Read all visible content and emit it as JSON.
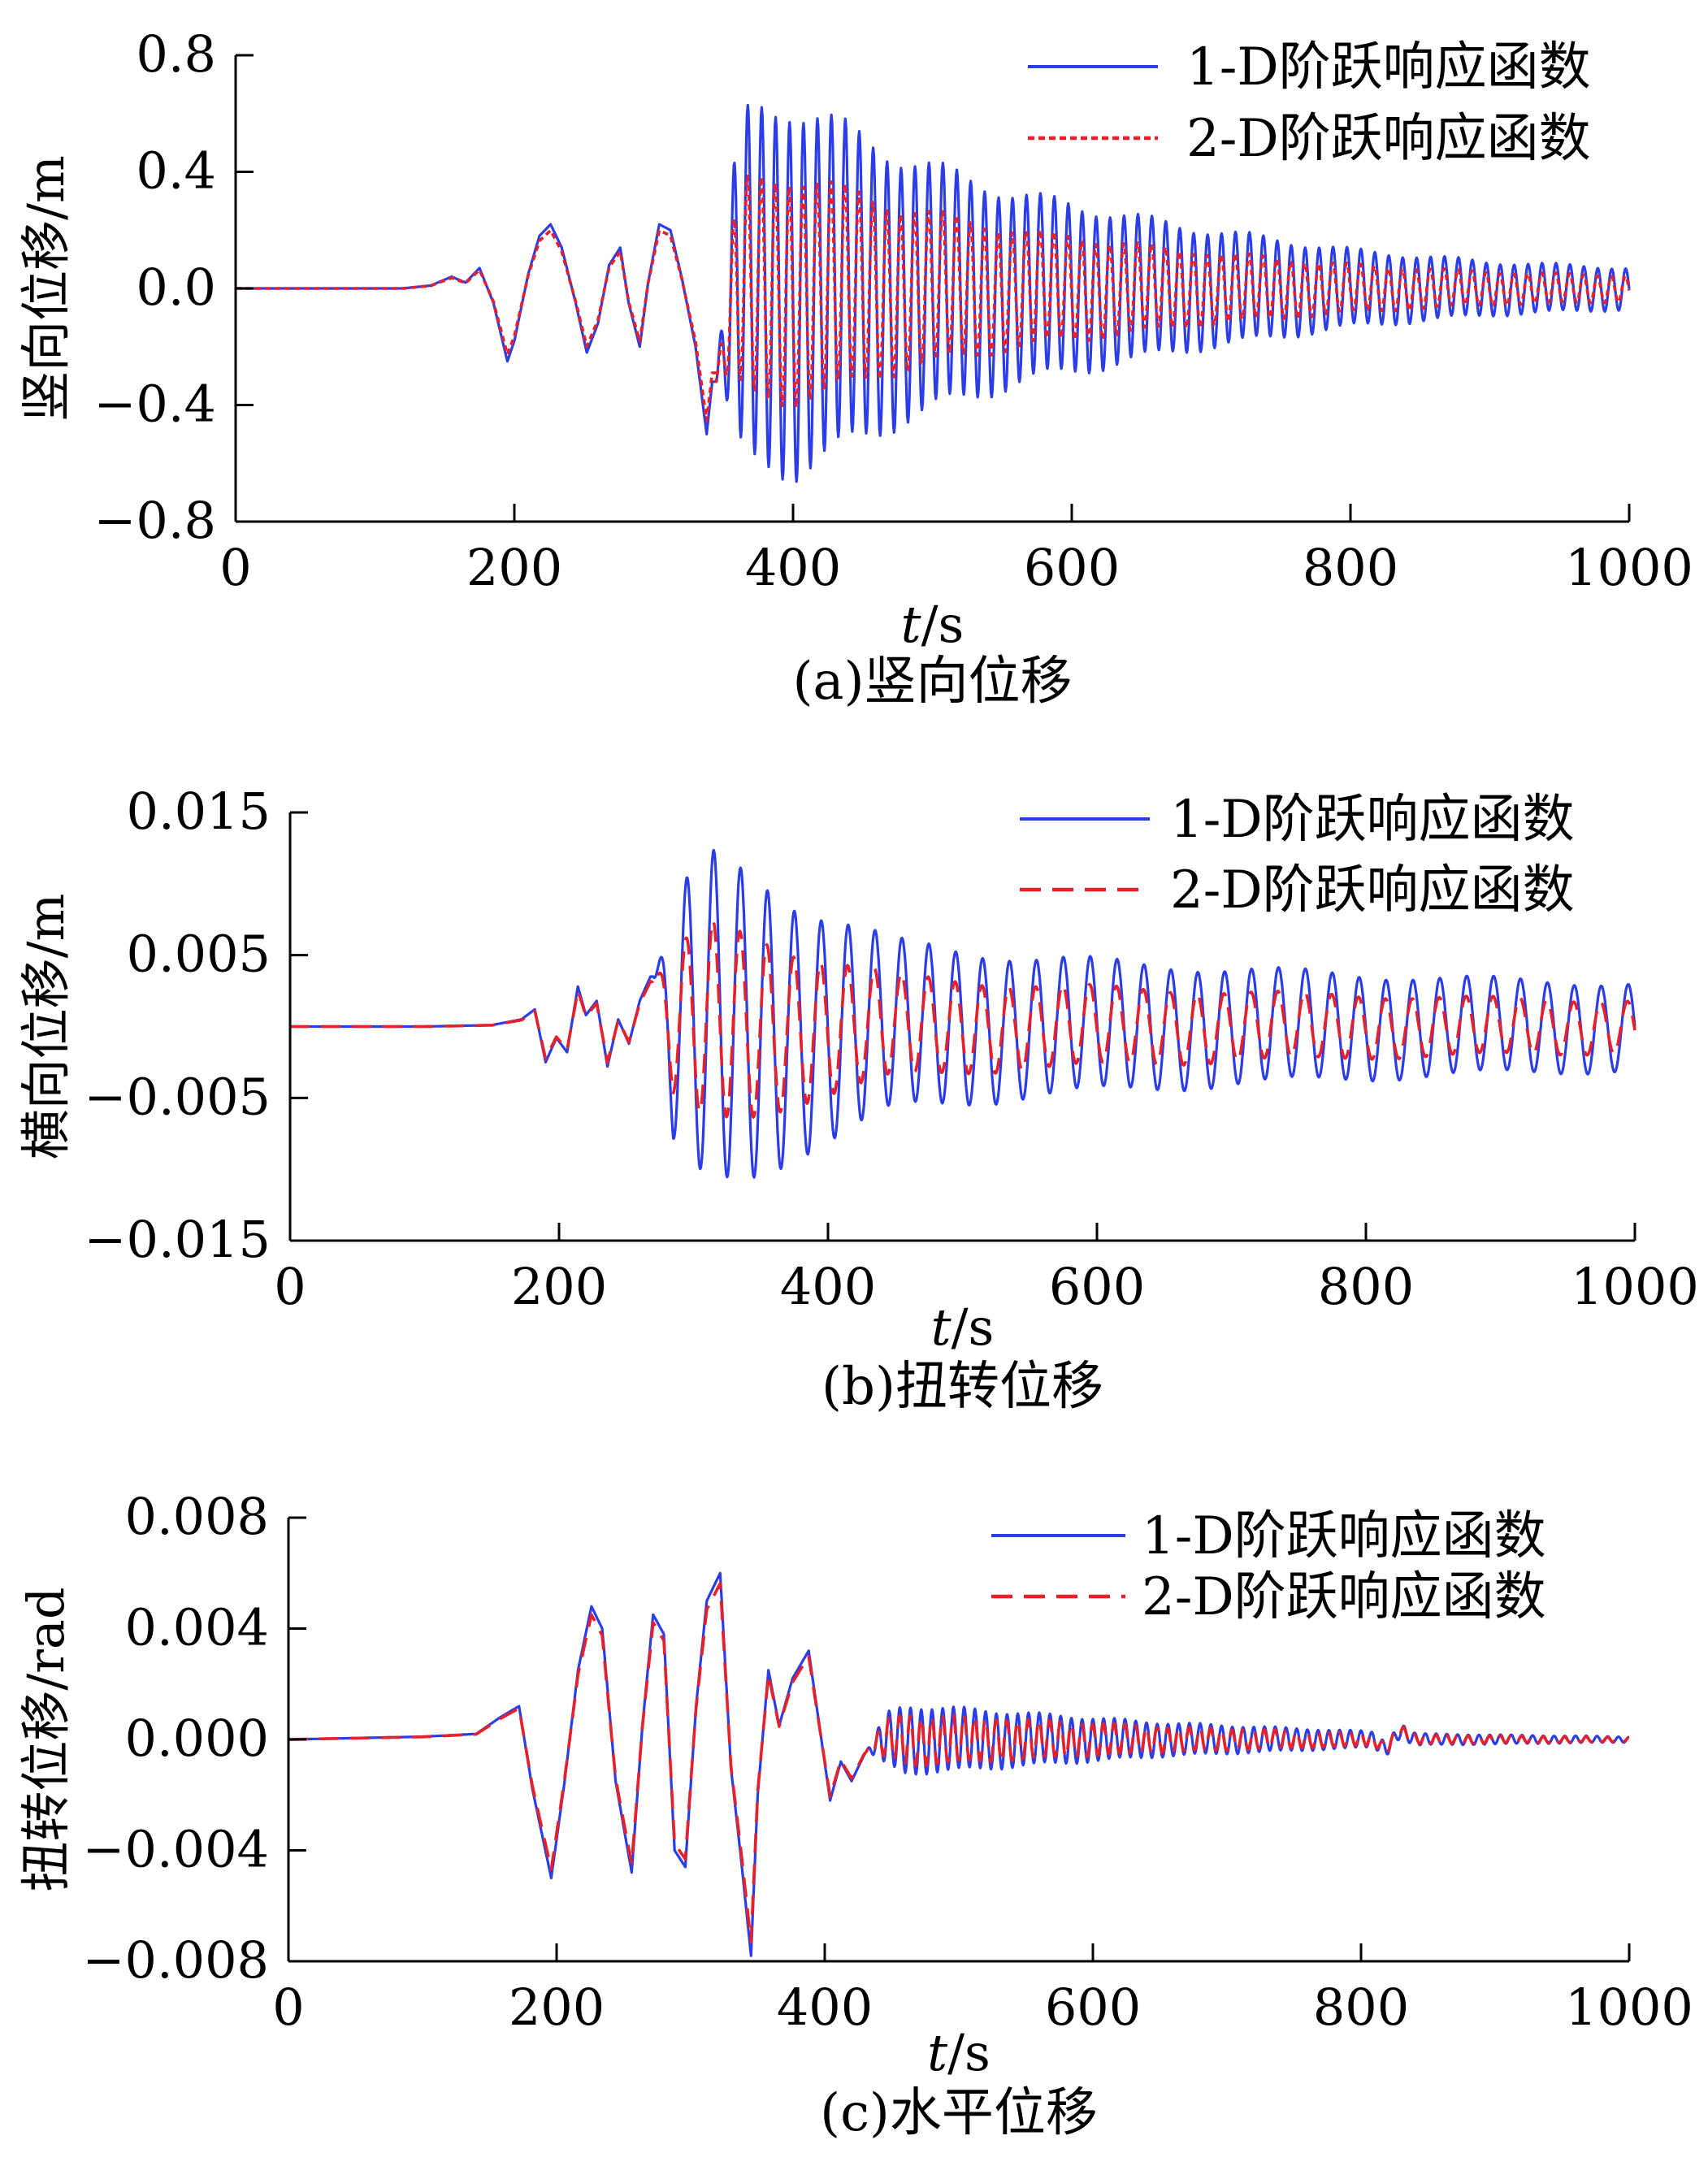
{
  "colors": {
    "series1": "#2a3de8",
    "series2": "#e8202a",
    "axis": "#000000"
  },
  "chart_data": [
    {
      "type": "line",
      "ylabel": "竖向位移/m",
      "xlabel_italic": "t",
      "xlabel_unit": "/s",
      "caption": "(a)竖向位移",
      "xlim": [
        0,
        1000
      ],
      "ylim": [
        -0.8,
        0.8
      ],
      "xticks": [
        0,
        200,
        400,
        600,
        800,
        1000
      ],
      "xtick_labels": [
        "0",
        "200",
        "400",
        "600",
        "800",
        "1000"
      ],
      "yticks": [
        -0.8,
        -0.4,
        0.0,
        0.4,
        0.8
      ],
      "ytick_labels": [
        "−0.8",
        "−0.4",
        "0.0",
        "0.4",
        "0.8"
      ],
      "legend_position": "top-right",
      "series": [
        {
          "name": "1-D阶跃响应函数",
          "style": "solid",
          "color": "#2a3de8"
        },
        {
          "name": "2-D阶跃响应函数",
          "style": "dotted",
          "color": "#e8202a"
        }
      ],
      "signal": {
        "preamble": [
          [
            0,
            0.0
          ],
          [
            120,
            0.0
          ],
          [
            140,
            0.01
          ],
          [
            155,
            0.04
          ],
          [
            165,
            0.02
          ],
          [
            175,
            0.07
          ],
          [
            185,
            -0.05
          ],
          [
            195,
            -0.25
          ],
          [
            200,
            -0.18
          ],
          [
            210,
            0.05
          ],
          [
            218,
            0.18
          ],
          [
            226,
            0.22
          ],
          [
            234,
            0.14
          ],
          [
            244,
            -0.05
          ],
          [
            252,
            -0.22
          ],
          [
            260,
            -0.12
          ],
          [
            268,
            0.08
          ],
          [
            276,
            0.14
          ],
          [
            282,
            -0.05
          ],
          [
            290,
            -0.2
          ],
          [
            296,
            0.02
          ],
          [
            304,
            0.22
          ],
          [
            312,
            0.2
          ],
          [
            320,
            0.04
          ],
          [
            330,
            -0.2
          ],
          [
            338,
            -0.5
          ],
          [
            342,
            -0.32
          ]
        ],
        "osc_start": 345,
        "osc_end": 1000,
        "osc_period": 10,
        "envelope": [
          [
            345,
            0.45
          ],
          [
            370,
            0.6
          ],
          [
            400,
            0.62
          ],
          [
            420,
            0.58
          ],
          [
            480,
            0.44
          ],
          [
            560,
            0.32
          ],
          [
            680,
            0.21
          ],
          [
            800,
            0.13
          ],
          [
            900,
            0.09
          ],
          [
            1000,
            0.07
          ]
        ],
        "series2_scale": 0.62
      }
    },
    {
      "type": "line",
      "ylabel": "横向位移/m",
      "xlabel_italic": "t",
      "xlabel_unit": "/s",
      "caption": "(b)扭转位移",
      "xlim": [
        0,
        1000
      ],
      "ylim": [
        -0.015,
        0.015
      ],
      "xticks": [
        0,
        200,
        400,
        600,
        800,
        1000
      ],
      "xtick_labels": [
        "0",
        "200",
        "400",
        "600",
        "800",
        "1000"
      ],
      "yticks": [
        -0.015,
        -0.005,
        0.005,
        0.015
      ],
      "ytick_labels": [
        "−0.015",
        "−0.005",
        "0.005",
        "0.015"
      ],
      "legend_position": "top-right",
      "series": [
        {
          "name": "1-D阶跃响应函数",
          "style": "solid",
          "color": "#2a3de8"
        },
        {
          "name": "2-D阶跃响应函数",
          "style": "dashed",
          "color": "#e8202a"
        }
      ],
      "signal": {
        "preamble": [
          [
            0,
            0.0
          ],
          [
            100,
            0.0
          ],
          [
            150,
            0.0001
          ],
          [
            172,
            0.0005
          ],
          [
            182,
            0.0012
          ],
          [
            190,
            -0.0025
          ],
          [
            198,
            -0.0008
          ],
          [
            206,
            -0.0018
          ],
          [
            214,
            0.0028
          ],
          [
            220,
            0.0008
          ],
          [
            228,
            0.0018
          ],
          [
            236,
            -0.0028
          ],
          [
            244,
            0.0005
          ],
          [
            252,
            -0.0012
          ],
          [
            260,
            0.0018
          ],
          [
            268,
            0.0035
          ]
        ],
        "osc_start": 270,
        "osc_end": 1000,
        "osc_period": 20,
        "envelope": [
          [
            270,
            0.006
          ],
          [
            300,
            0.0105
          ],
          [
            315,
            0.0115
          ],
          [
            345,
            0.0105
          ],
          [
            380,
            0.0085
          ],
          [
            450,
            0.0058
          ],
          [
            550,
            0.0048
          ],
          [
            700,
            0.004
          ],
          [
            850,
            0.0034
          ],
          [
            1000,
            0.003
          ]
        ],
        "series2_scale": 0.6
      }
    },
    {
      "type": "line",
      "ylabel": "扭转位移/rad",
      "xlabel_italic": "t",
      "xlabel_unit": "/s",
      "caption": "(c)水平位移",
      "xlim": [
        0,
        1000
      ],
      "ylim": [
        -0.008,
        0.008
      ],
      "xticks": [
        0,
        200,
        400,
        600,
        800,
        1000
      ],
      "xtick_labels": [
        "0",
        "200",
        "400",
        "600",
        "800",
        "1000"
      ],
      "yticks": [
        -0.008,
        -0.004,
        0.0,
        0.004,
        0.008
      ],
      "ytick_labels": [
        "−0.008",
        "−0.004",
        "0.000",
        "0.004",
        "0.008"
      ],
      "legend_position": "top-right",
      "series": [
        {
          "name": "1-D阶跃响应函数",
          "style": "solid",
          "color": "#2a3de8"
        },
        {
          "name": "2-D阶跃响应函数",
          "style": "dashed",
          "color": "#e8202a"
        }
      ],
      "signal": {
        "preamble": [
          [
            0,
            0.0
          ],
          [
            100,
            0.0001
          ],
          [
            140,
            0.0002
          ],
          [
            158,
            0.0008
          ],
          [
            172,
            0.0012
          ],
          [
            182,
            -0.0018
          ],
          [
            196,
            -0.005
          ],
          [
            206,
            -0.0015
          ],
          [
            216,
            0.0025
          ],
          [
            226,
            0.0048
          ],
          [
            234,
            0.004
          ],
          [
            244,
            -0.0015
          ],
          [
            256,
            -0.0048
          ],
          [
            264,
            0.0005
          ],
          [
            272,
            0.0045
          ],
          [
            280,
            0.0038
          ],
          [
            288,
            -0.004
          ],
          [
            296,
            -0.0046
          ],
          [
            304,
            0.0012
          ],
          [
            312,
            0.005
          ],
          [
            322,
            0.006
          ],
          [
            330,
            -0.001
          ],
          [
            338,
            -0.0045
          ],
          [
            345,
            -0.0078
          ],
          [
            350,
            -0.002
          ],
          [
            358,
            0.0025
          ],
          [
            366,
            0.0005
          ],
          [
            376,
            0.0022
          ],
          [
            388,
            0.0032
          ],
          [
            396,
            0.0005
          ],
          [
            404,
            -0.0022
          ],
          [
            412,
            -0.0008
          ],
          [
            420,
            -0.0015
          ],
          [
            430,
            -0.0005
          ]
        ],
        "osc_start": 430,
        "osc_end": 1000,
        "osc_period": 8,
        "envelope": [
          [
            430,
            0.0006
          ],
          [
            460,
            0.0012
          ],
          [
            500,
            0.0011
          ],
          [
            560,
            0.0009
          ],
          [
            650,
            0.0006
          ],
          [
            750,
            0.0004
          ],
          [
            850,
            0.0002
          ],
          [
            1000,
            0.0001
          ]
        ],
        "bumps": [
          [
            818,
            -0.0003
          ],
          [
            830,
            0.0003
          ]
        ],
        "series2_scale": 0.75
      }
    }
  ]
}
